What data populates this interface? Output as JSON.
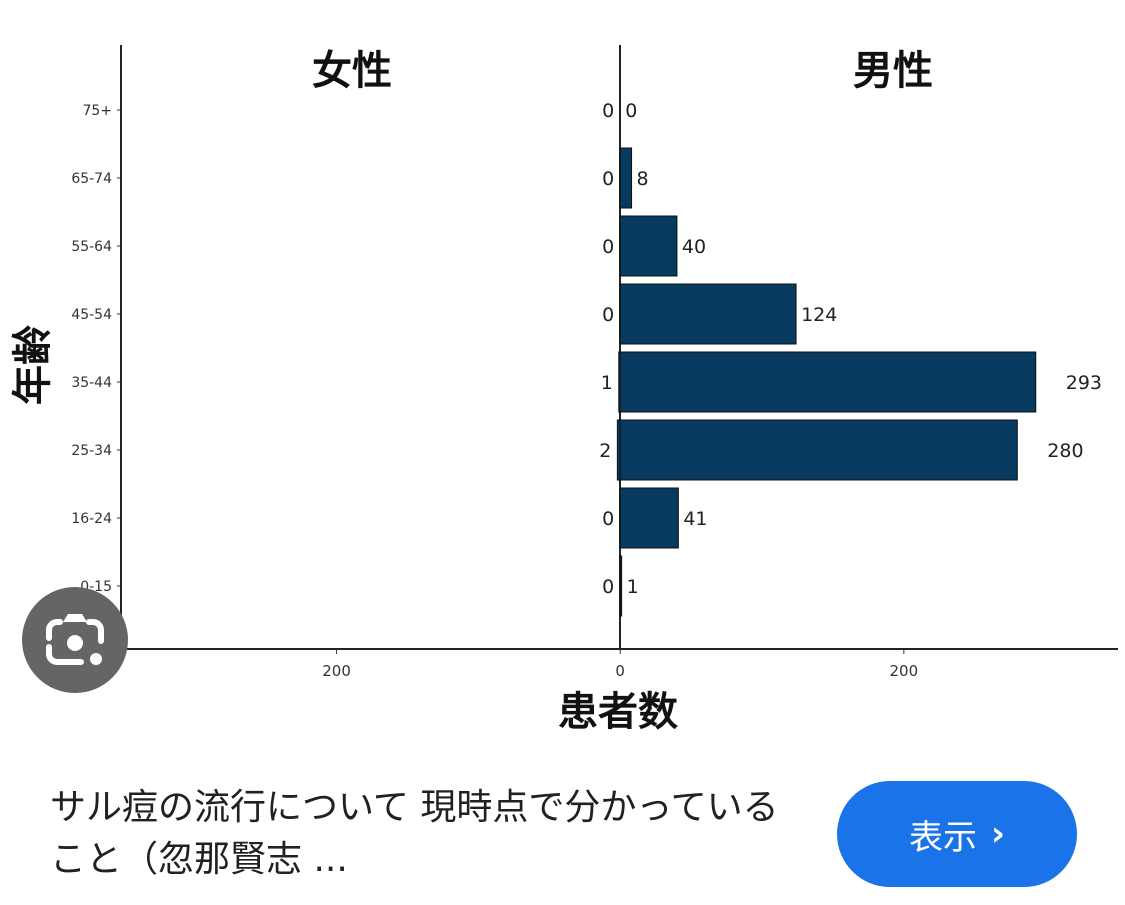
{
  "chart_data": {
    "type": "bar",
    "orientation": "horizontal-population-pyramid",
    "panel_titles": [
      "女性",
      "男性"
    ],
    "ylabel": "年齢",
    "xlabel": "患者数",
    "categories": [
      "75+",
      "65-74",
      "55-64",
      "45-54",
      "35-44",
      "25-34",
      "16-24",
      "0-15"
    ],
    "series": [
      {
        "name": "女性",
        "values": [
          0,
          0,
          0,
          0,
          1,
          2,
          0,
          0
        ]
      },
      {
        "name": "男性",
        "values": [
          0,
          8,
          40,
          124,
          293,
          280,
          41,
          1
        ]
      }
    ],
    "xlim": [
      -352,
      351
    ],
    "x_ticks": [
      -200,
      0,
      200
    ],
    "x_tick_labels": [
      "200",
      "0",
      "200"
    ],
    "bar_color": "#063a5e",
    "grid": false
  },
  "result": {
    "title": "サル痘の流行について 現時点で分かっていること（忽那賢志 ...",
    "show_button": "表示",
    "show_icon": "chevron-right-icon",
    "lens_icon": "google-lens-icon"
  }
}
